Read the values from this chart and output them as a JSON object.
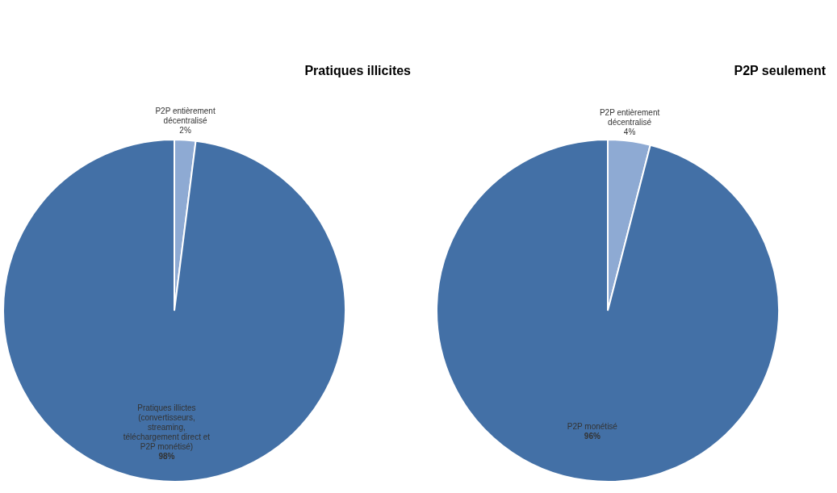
{
  "chart_data": [
    {
      "type": "pie",
      "title": "Pratiques illicites",
      "categories": [
        "P2P entièrement décentralisé",
        "Pratiques illictes (convertisseurs, streaming, téléchargement direct et P2P monétisé)"
      ],
      "values": [
        2,
        98
      ],
      "value_labels": [
        "2%",
        "98%"
      ],
      "colors": [
        "#8eaad3",
        "#4370a6"
      ],
      "legend": false
    },
    {
      "type": "pie",
      "title": "P2P seulement",
      "categories": [
        "P2P entièrement décentralisé",
        "P2P monétisé"
      ],
      "values": [
        4,
        96
      ],
      "value_labels": [
        "4%",
        "96%"
      ],
      "colors": [
        "#8eaad3",
        "#4370a6"
      ],
      "legend": false
    }
  ]
}
